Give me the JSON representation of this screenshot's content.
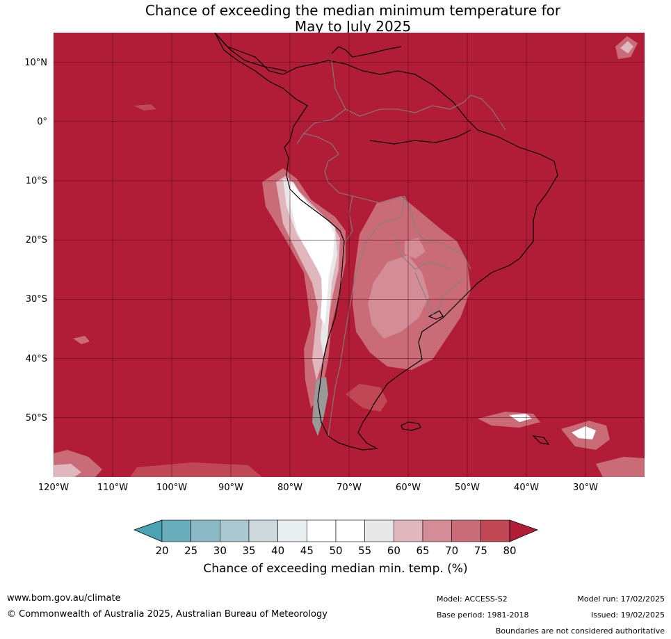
{
  "title_line1": "Chance of exceeding the median minimum temperature for",
  "title_line2": "May to July 2025",
  "lat_ticks": [
    {
      "label": "10°N",
      "value": 10
    },
    {
      "label": "0°",
      "value": 0
    },
    {
      "label": "10°S",
      "value": -10
    },
    {
      "label": "20°S",
      "value": -20
    },
    {
      "label": "30°S",
      "value": -30
    },
    {
      "label": "40°S",
      "value": -40
    },
    {
      "label": "50°S",
      "value": -50
    }
  ],
  "lon_ticks": [
    {
      "label": "120°W",
      "value": -120
    },
    {
      "label": "110°W",
      "value": -110
    },
    {
      "label": "100°W",
      "value": -100
    },
    {
      "label": "90°W",
      "value": -90
    },
    {
      "label": "80°W",
      "value": -80
    },
    {
      "label": "70°W",
      "value": -70
    },
    {
      "label": "60°W",
      "value": -60
    },
    {
      "label": "50°W",
      "value": -50
    },
    {
      "label": "40°W",
      "value": -40
    },
    {
      "label": "30°W",
      "value": -30
    }
  ],
  "map_extent": {
    "lon_min": -120,
    "lon_max": -20,
    "lat_min": -60,
    "lat_max": 15
  },
  "colorbar": {
    "ticks": [
      "20",
      "25",
      "30",
      "35",
      "40",
      "45",
      "50",
      "55",
      "60",
      "65",
      "70",
      "75",
      "80"
    ],
    "colors": [
      "#6aaebe",
      "#8cb9c6",
      "#a9c8cf",
      "#cdd9dc",
      "#e9eff1",
      "#ffffff",
      "#ffffff",
      "#e9e8e9",
      "#e0b7bd",
      "#d48d97",
      "#c96c78",
      "#c04855"
    ],
    "under_color": "#4aa4b3",
    "over_color": "#b11c37",
    "label": "Chance of exceeding median min. temp. (%)"
  },
  "colors": {
    "ocean_fill": "#b11c37",
    "coastline": "#000000",
    "border": "#808080",
    "grid": "#4a0010"
  },
  "footer": {
    "website": "www.bom.gov.au/climate",
    "copyright": "© Commonwealth of Australia 2025, Australian Bureau of Meteorology",
    "model": "Model: ACCESS-S2",
    "base_period": "Base period: 1981-2018",
    "model_run": "Model run: 17/02/2025",
    "issued": "Issued: 19/02/2025",
    "boundaries_note": "Boundaries are not considered authoritative"
  }
}
